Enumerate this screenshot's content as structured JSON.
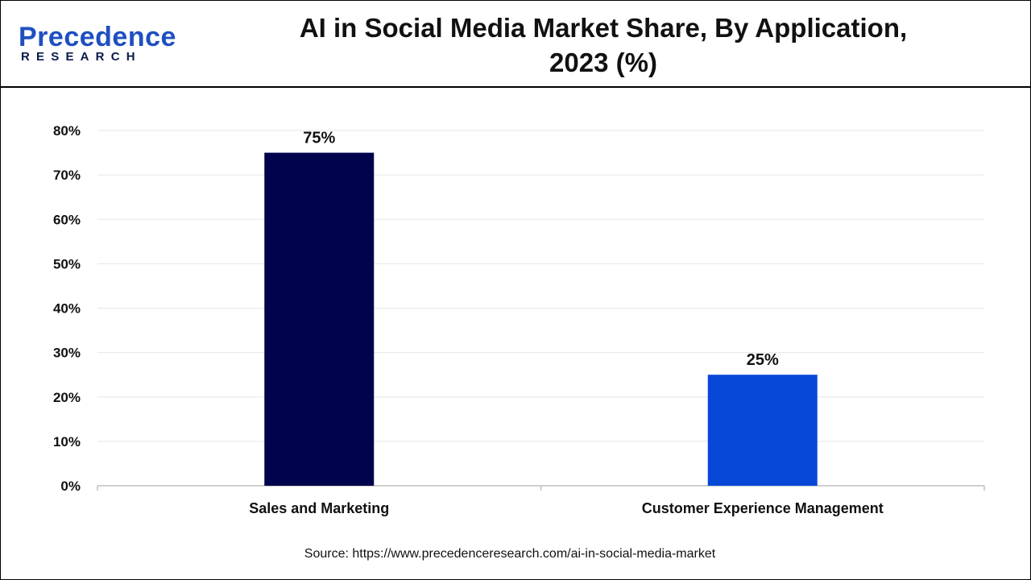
{
  "brand": {
    "name_top": "Precedence",
    "name_bottom": "RESEARCH"
  },
  "title": {
    "line1": "AI in Social Media Market Share, By Application,",
    "line2": "2023 (%)"
  },
  "source": "Source: https://www.precedenceresearch.com/ai-in-social-media-market",
  "colors": {
    "series": [
      "#02034d",
      "#0848d8"
    ],
    "grid": "#e6e6e6",
    "axis": "#bfbfbf",
    "brand_blue": "#1f4fc1",
    "brand_dark": "#0b1a4a"
  },
  "chart_data": {
    "type": "bar",
    "title": "AI in Social Media Market Share, By Application, 2023 (%)",
    "categories": [
      "Sales and Marketing",
      "Customer Experience Management"
    ],
    "values": [
      75,
      25
    ],
    "data_labels": [
      "75%",
      "25%"
    ],
    "xlabel": "",
    "ylabel": "",
    "ylim": [
      0,
      80
    ],
    "yticks": [
      0,
      10,
      20,
      30,
      40,
      50,
      60,
      70,
      80
    ],
    "ytick_labels": [
      "0%",
      "10%",
      "20%",
      "30%",
      "40%",
      "50%",
      "60%",
      "70%",
      "80%"
    ],
    "grid": true,
    "legend": "none"
  }
}
